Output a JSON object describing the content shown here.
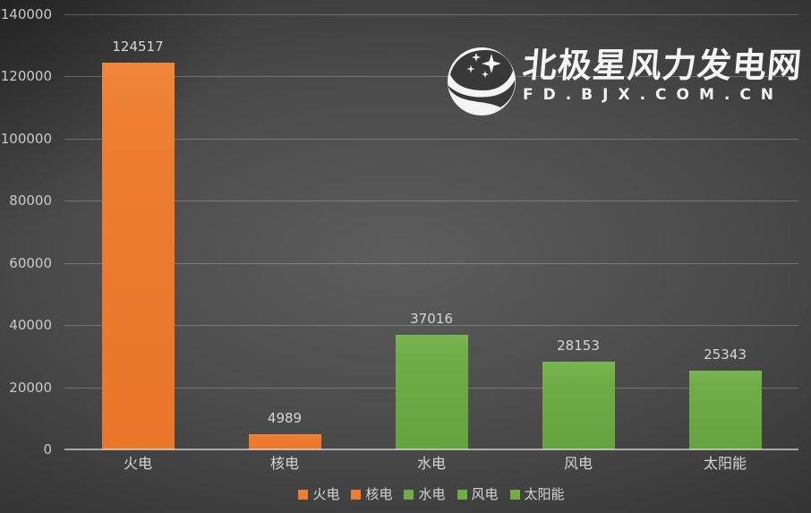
{
  "chart_data": {
    "type": "bar",
    "categories": [
      "火电",
      "核电",
      "水电",
      "风电",
      "太阳能"
    ],
    "values": [
      124517,
      4989,
      37016,
      28153,
      25343
    ],
    "value_labels": [
      "124517",
      "4989",
      "37016",
      "28153",
      "25343"
    ],
    "bar_colors": [
      "#ED7D31",
      "#ED7D31",
      "#70AD47",
      "#70AD47",
      "#70AD47"
    ],
    "title": "",
    "xlabel": "",
    "ylabel": "",
    "ylim": [
      0,
      140000
    ],
    "yticks": [
      0,
      20000,
      40000,
      60000,
      80000,
      100000,
      120000,
      140000
    ],
    "grid": true,
    "legend_position": "bottom",
    "legend": [
      {
        "label": "火电",
        "color": "#ED7D31"
      },
      {
        "label": "核电",
        "color": "#ED7D31"
      },
      {
        "label": "水电",
        "color": "#70AD47"
      },
      {
        "label": "风电",
        "color": "#70AD47"
      },
      {
        "label": "太阳能",
        "color": "#70AD47"
      }
    ]
  },
  "watermark": {
    "title": "北极星风力发电网",
    "subtitle": "FD.BJX.COM.CN",
    "icon": "bjx-polar-star-logo"
  },
  "colors": {
    "orange": "#ED7D31",
    "green": "#70AD47",
    "background_center": "#5d5d5d",
    "background_edge": "#232323",
    "gridline": "rgba(255,255,255,0.24)",
    "axis_line": "rgba(255,255,255,0.55)",
    "label_text": "#D6D6D6"
  }
}
